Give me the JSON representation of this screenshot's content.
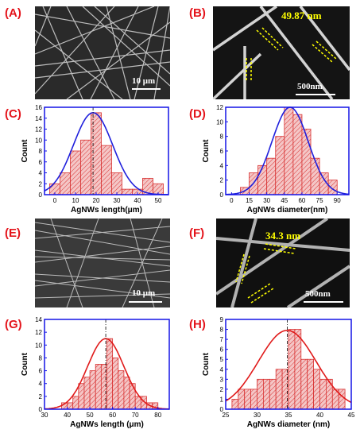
{
  "panel_labels": [
    "(A)",
    "(B)",
    "(C)",
    "(D)",
    "(E)",
    "(F)",
    "(G)",
    "(H)"
  ],
  "images": {
    "A": {
      "scale_label": "10 μm"
    },
    "B": {
      "scale_label": "500nm",
      "measurement": "49.87 nm"
    },
    "E": {
      "scale_label": "10 μm"
    },
    "F": {
      "scale_label": "500nm",
      "measurement": "34.3 nm"
    }
  },
  "colors": {
    "panel_label": "#e4141b",
    "frame": "#1414e6",
    "bar_fill": "#f4c6c6",
    "bar_edge": "#d83030",
    "fit_blue": "#1f1fdc",
    "fit_red": "#e01a1a",
    "measurement": "#ffff00"
  },
  "chart_data": [
    {
      "type": "bar",
      "panel": "C",
      "title": "",
      "xlabel": "AgNWs length(μm)",
      "ylabel": "Count",
      "xlim": [
        -5,
        55
      ],
      "ylim": [
        0,
        16
      ],
      "xticks": [
        0,
        10,
        20,
        30,
        40,
        50
      ],
      "yticks": [
        0,
        2,
        4,
        6,
        8,
        10,
        12,
        14,
        16
      ],
      "bins": [
        [
          -2.5,
          2.5
        ],
        [
          2.5,
          7.5
        ],
        [
          7.5,
          12.5
        ],
        [
          12.5,
          17.5
        ],
        [
          17.5,
          22.5
        ],
        [
          22.5,
          27.5
        ],
        [
          27.5,
          32.5
        ],
        [
          32.5,
          37.5
        ],
        [
          37.5,
          42.5
        ],
        [
          42.5,
          47.5
        ],
        [
          47.5,
          52.5
        ]
      ],
      "values": [
        2,
        4,
        8,
        10,
        15,
        9,
        4,
        1,
        1,
        3,
        2
      ],
      "fit": {
        "kind": "gaussian",
        "mean": 18.5,
        "sigma": 9.5,
        "peak": 15,
        "color": "blue"
      },
      "mean_line": 18.5
    },
    {
      "type": "bar",
      "panel": "D",
      "title": "",
      "xlabel": "AgNWs diameter(nm)",
      "ylabel": "Count",
      "xlim": [
        -5,
        100
      ],
      "ylim": [
        0,
        12
      ],
      "xticks": [
        0,
        15,
        30,
        45,
        60,
        75,
        90
      ],
      "yticks": [
        0,
        2,
        4,
        6,
        8,
        10,
        12
      ],
      "bins": [
        [
          7.5,
          15
        ],
        [
          15,
          22.5
        ],
        [
          22.5,
          30
        ],
        [
          30,
          37.5
        ],
        [
          37.5,
          45
        ],
        [
          45,
          52.5
        ],
        [
          52.5,
          60
        ],
        [
          60,
          67.5
        ],
        [
          67.5,
          75
        ],
        [
          75,
          82.5
        ],
        [
          82.5,
          90
        ]
      ],
      "values": [
        1,
        3,
        4,
        5,
        8,
        12,
        11,
        9,
        5,
        3,
        2
      ],
      "fit": {
        "kind": "gaussian",
        "mean": 49.9,
        "sigma": 15.5,
        "peak": 12,
        "color": "blue"
      },
      "mean_line": null
    },
    {
      "type": "bar",
      "panel": "G",
      "title": "",
      "xlabel": "AgNWs length (μm)",
      "ylabel": "Count",
      "xlim": [
        30,
        85
      ],
      "ylim": [
        0,
        14
      ],
      "xticks": [
        30,
        40,
        50,
        60,
        70,
        80
      ],
      "yticks": [
        0,
        2,
        4,
        6,
        8,
        10,
        12,
        14
      ],
      "bins": [
        [
          37.5,
          40
        ],
        [
          40,
          42.5
        ],
        [
          42.5,
          45
        ],
        [
          45,
          47.5
        ],
        [
          47.5,
          50
        ],
        [
          50,
          52.5
        ],
        [
          52.5,
          55
        ],
        [
          55,
          57.5
        ],
        [
          57.5,
          60
        ],
        [
          60,
          62.5
        ],
        [
          62.5,
          65
        ],
        [
          65,
          67.5
        ],
        [
          67.5,
          70
        ],
        [
          70,
          72.5
        ],
        [
          72.5,
          75
        ],
        [
          75,
          77.5
        ],
        [
          77.5,
          80
        ]
      ],
      "values": [
        1,
        1,
        2,
        4,
        5,
        6,
        7,
        7,
        11,
        8,
        6,
        5,
        4,
        2,
        2,
        1,
        1
      ],
      "fit": {
        "kind": "gaussian",
        "mean": 57,
        "sigma": 8,
        "peak": 11,
        "color": "red"
      },
      "mean_line": 57
    },
    {
      "type": "bar",
      "panel": "H",
      "title": "",
      "xlabel": "AgNWs diameter (nm)",
      "ylabel": "Count",
      "xlim": [
        25,
        45
      ],
      "ylim": [
        0,
        9
      ],
      "xticks": [
        25,
        30,
        35,
        40,
        45
      ],
      "yticks": [
        0,
        1,
        2,
        3,
        4,
        5,
        6,
        7,
        8,
        9
      ],
      "bins": [
        [
          26,
          27
        ],
        [
          27,
          28
        ],
        [
          28,
          29
        ],
        [
          29,
          30
        ],
        [
          30,
          31
        ],
        [
          31,
          32
        ],
        [
          32,
          33
        ],
        [
          33,
          34
        ],
        [
          34,
          35
        ],
        [
          35,
          36
        ],
        [
          36,
          37
        ],
        [
          37,
          38
        ],
        [
          38,
          39
        ],
        [
          39,
          40
        ],
        [
          40,
          41
        ],
        [
          41,
          42
        ],
        [
          42,
          43
        ],
        [
          43,
          44
        ]
      ],
      "values": [
        1,
        2,
        2,
        2,
        3,
        3,
        3,
        4,
        4,
        8,
        8,
        5,
        5,
        4,
        3,
        3,
        2,
        2
      ],
      "fit": {
        "kind": "gaussian",
        "mean": 34.8,
        "sigma": 4.6,
        "peak": 7.9,
        "color": "red"
      },
      "mean_line": 34.8
    }
  ]
}
